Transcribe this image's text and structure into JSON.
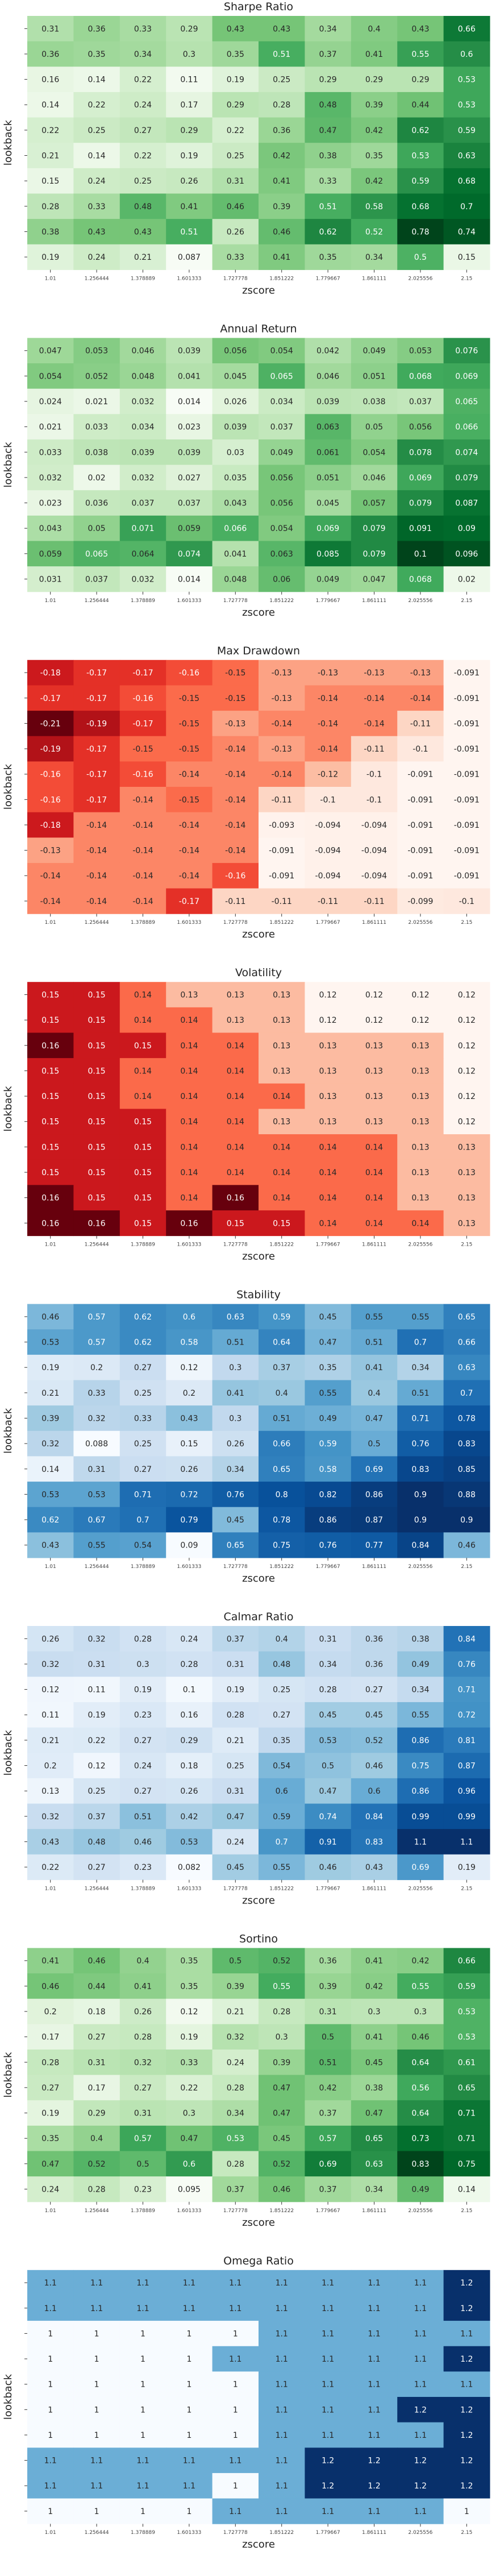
{
  "chart_data": [
    {
      "type": "heatmap",
      "title": "Sharpe Ratio",
      "xlabel": "zscore",
      "ylabel": "lookback",
      "x_ticks": [
        "1.01",
        "1.256444",
        "1.378889",
        "1.601333",
        "1.727778",
        "1.851222",
        "1.779667",
        "1.861111",
        "2.025556",
        "2.15"
      ],
      "y_ticks": [
        "",
        "",
        "",
        "",
        "",
        "",
        "",
        "",
        "",
        ""
      ],
      "colormap": "Greens",
      "values": [
        [
          0.31,
          0.36,
          0.33,
          0.29,
          0.43,
          0.43,
          0.34,
          0.4,
          0.43,
          0.66
        ],
        [
          0.36,
          0.35,
          0.34,
          0.3,
          0.35,
          0.51,
          0.37,
          0.41,
          0.55,
          0.6
        ],
        [
          0.16,
          0.14,
          0.22,
          0.11,
          0.19,
          0.25,
          0.29,
          0.29,
          0.29,
          0.53
        ],
        [
          0.14,
          0.22,
          0.24,
          0.17,
          0.29,
          0.28,
          0.48,
          0.39,
          0.44,
          0.53
        ],
        [
          0.22,
          0.25,
          0.27,
          0.29,
          0.22,
          0.36,
          0.47,
          0.42,
          0.62,
          0.59
        ],
        [
          0.21,
          0.14,
          0.22,
          0.19,
          0.25,
          0.42,
          0.38,
          0.35,
          0.53,
          0.63
        ],
        [
          0.15,
          0.24,
          0.25,
          0.26,
          0.31,
          0.41,
          0.33,
          0.42,
          0.59,
          0.68
        ],
        [
          0.28,
          0.33,
          0.48,
          0.41,
          0.46,
          0.39,
          0.51,
          0.58,
          0.68,
          0.7
        ],
        [
          0.38,
          0.43,
          0.43,
          0.51,
          0.26,
          0.46,
          0.62,
          0.52,
          0.78,
          0.74
        ],
        [
          0.19,
          0.24,
          0.21,
          0.087,
          0.33,
          0.41,
          0.35,
          0.34,
          0.5,
          0.15
        ]
      ]
    },
    {
      "type": "heatmap",
      "title": "Annual Return",
      "xlabel": "zscore",
      "ylabel": "lookback",
      "x_ticks": [
        "1.01",
        "1.256444",
        "1.378889",
        "1.601333",
        "1.727778",
        "1.851222",
        "1.779667",
        "1.861111",
        "2.025556",
        "2.15"
      ],
      "y_ticks": [
        "",
        "",
        "",
        "",
        "",
        "",
        "",
        "",
        "",
        ""
      ],
      "colormap": "Greens",
      "values": [
        [
          0.047,
          0.053,
          0.046,
          0.039,
          0.056,
          0.054,
          0.042,
          0.049,
          0.053,
          0.076
        ],
        [
          0.054,
          0.052,
          0.048,
          0.041,
          0.045,
          0.065,
          0.046,
          0.051,
          0.068,
          0.069
        ],
        [
          0.024,
          0.021,
          0.032,
          0.014,
          0.026,
          0.034,
          0.039,
          0.038,
          0.037,
          0.065
        ],
        [
          0.021,
          0.033,
          0.034,
          0.023,
          0.039,
          0.037,
          0.063,
          0.05,
          0.056,
          0.066
        ],
        [
          0.033,
          0.038,
          0.039,
          0.039,
          0.03,
          0.049,
          0.061,
          0.054,
          0.078,
          0.074
        ],
        [
          0.032,
          0.02,
          0.032,
          0.027,
          0.035,
          0.056,
          0.051,
          0.046,
          0.069,
          0.079
        ],
        [
          0.023,
          0.036,
          0.037,
          0.037,
          0.043,
          0.056,
          0.045,
          0.057,
          0.079,
          0.087
        ],
        [
          0.043,
          0.05,
          0.071,
          0.059,
          0.066,
          0.054,
          0.069,
          0.079,
          0.091,
          0.09
        ],
        [
          0.059,
          0.065,
          0.064,
          0.074,
          0.041,
          0.063,
          0.085,
          0.079,
          0.1,
          0.096
        ],
        [
          0.031,
          0.037,
          0.032,
          0.014,
          0.048,
          0.06,
          0.049,
          0.047,
          0.068,
          0.02
        ]
      ]
    },
    {
      "type": "heatmap",
      "title": "Max Drawdown",
      "xlabel": "zscore",
      "ylabel": "lookback",
      "x_ticks": [
        "1.01",
        "1.256444",
        "1.378889",
        "1.601333",
        "1.727778",
        "1.851222",
        "1.779667",
        "1.861111",
        "2.025556",
        "2.15"
      ],
      "y_ticks": [
        "",
        "",
        "",
        "",
        "",
        "",
        "",
        "",
        "",
        ""
      ],
      "colormap": "Reds_r",
      "values": [
        [
          -0.18,
          -0.17,
          -0.17,
          -0.16,
          -0.15,
          -0.13,
          -0.13,
          -0.13,
          -0.13,
          -0.091
        ],
        [
          -0.17,
          -0.17,
          -0.16,
          -0.15,
          -0.15,
          -0.13,
          -0.14,
          -0.14,
          -0.14,
          -0.091
        ],
        [
          -0.21,
          -0.19,
          -0.17,
          -0.15,
          -0.13,
          -0.14,
          -0.14,
          -0.14,
          -0.11,
          -0.091
        ],
        [
          -0.19,
          -0.17,
          -0.15,
          -0.15,
          -0.14,
          -0.13,
          -0.14,
          -0.11,
          -0.1,
          -0.091
        ],
        [
          -0.16,
          -0.17,
          -0.16,
          -0.14,
          -0.14,
          -0.14,
          -0.12,
          -0.1,
          -0.091,
          -0.091
        ],
        [
          -0.16,
          -0.17,
          -0.14,
          -0.15,
          -0.14,
          -0.11,
          -0.1,
          -0.1,
          -0.091,
          -0.091
        ],
        [
          -0.18,
          -0.14,
          -0.14,
          -0.14,
          -0.14,
          -0.093,
          -0.094,
          -0.094,
          -0.091,
          -0.091
        ],
        [
          -0.13,
          -0.14,
          -0.14,
          -0.14,
          -0.14,
          -0.091,
          -0.094,
          -0.094,
          -0.091,
          -0.091
        ],
        [
          -0.14,
          -0.14,
          -0.14,
          -0.14,
          -0.16,
          -0.091,
          -0.094,
          -0.094,
          -0.091,
          -0.091
        ],
        [
          -0.14,
          -0.14,
          -0.14,
          -0.17,
          -0.11,
          -0.11,
          -0.11,
          -0.11,
          -0.099,
          -0.1
        ]
      ]
    },
    {
      "type": "heatmap",
      "title": "Volatility",
      "xlabel": "zscore",
      "ylabel": "lookback",
      "x_ticks": [
        "1.01",
        "1.256444",
        "1.378889",
        "1.601333",
        "1.727778",
        "1.851222",
        "1.779667",
        "1.861111",
        "2.025556",
        "2.15"
      ],
      "y_ticks": [
        "",
        "",
        "",
        "",
        "",
        "",
        "",
        "",
        "",
        ""
      ],
      "colormap": "Reds",
      "values": [
        [
          0.15,
          0.15,
          0.14,
          0.13,
          0.13,
          0.13,
          0.12,
          0.12,
          0.12,
          0.12
        ],
        [
          0.15,
          0.15,
          0.14,
          0.14,
          0.13,
          0.13,
          0.12,
          0.12,
          0.12,
          0.12
        ],
        [
          0.16,
          0.15,
          0.15,
          0.14,
          0.14,
          0.13,
          0.13,
          0.13,
          0.13,
          0.12
        ],
        [
          0.15,
          0.15,
          0.14,
          0.14,
          0.14,
          0.13,
          0.13,
          0.13,
          0.13,
          0.12
        ],
        [
          0.15,
          0.15,
          0.14,
          0.14,
          0.14,
          0.14,
          0.13,
          0.13,
          0.13,
          0.12
        ],
        [
          0.15,
          0.15,
          0.15,
          0.14,
          0.14,
          0.13,
          0.13,
          0.13,
          0.13,
          0.12
        ],
        [
          0.15,
          0.15,
          0.15,
          0.14,
          0.14,
          0.14,
          0.14,
          0.14,
          0.13,
          0.13
        ],
        [
          0.15,
          0.15,
          0.15,
          0.14,
          0.14,
          0.14,
          0.14,
          0.14,
          0.13,
          0.13
        ],
        [
          0.16,
          0.15,
          0.15,
          0.14,
          0.16,
          0.14,
          0.14,
          0.14,
          0.13,
          0.13
        ],
        [
          0.16,
          0.16,
          0.15,
          0.16,
          0.15,
          0.15,
          0.14,
          0.14,
          0.14,
          0.13
        ]
      ]
    },
    {
      "type": "heatmap",
      "title": "Stability",
      "xlabel": "zscore",
      "ylabel": "lookback",
      "x_ticks": [
        "1.01",
        "1.256444",
        "1.378889",
        "1.601333",
        "1.727778",
        "1.851222",
        "1.779667",
        "1.861111",
        "2.025556",
        "2.15"
      ],
      "y_ticks": [
        "",
        "",
        "",
        "",
        "",
        "",
        "",
        "",
        "",
        ""
      ],
      "colormap": "Blues",
      "values": [
        [
          0.46,
          0.57,
          0.62,
          0.6,
          0.63,
          0.59,
          0.45,
          0.55,
          0.55,
          0.65
        ],
        [
          0.53,
          0.57,
          0.62,
          0.58,
          0.51,
          0.64,
          0.47,
          0.51,
          0.7,
          0.66
        ],
        [
          0.19,
          0.2,
          0.27,
          0.12,
          0.3,
          0.37,
          0.35,
          0.41,
          0.34,
          0.63
        ],
        [
          0.21,
          0.33,
          0.25,
          0.2,
          0.41,
          0.4,
          0.55,
          0.4,
          0.51,
          0.7
        ],
        [
          0.39,
          0.32,
          0.33,
          0.43,
          0.3,
          0.51,
          0.49,
          0.47,
          0.71,
          0.78
        ],
        [
          0.32,
          0.088,
          0.25,
          0.15,
          0.26,
          0.66,
          0.59,
          0.5,
          0.76,
          0.83
        ],
        [
          0.14,
          0.31,
          0.27,
          0.26,
          0.34,
          0.65,
          0.58,
          0.69,
          0.83,
          0.85
        ],
        [
          0.53,
          0.53,
          0.71,
          0.72,
          0.76,
          0.8,
          0.82,
          0.86,
          0.9,
          0.88
        ],
        [
          0.62,
          0.67,
          0.7,
          0.79,
          0.45,
          0.78,
          0.86,
          0.87,
          0.9,
          0.9
        ],
        [
          0.43,
          0.55,
          0.54,
          0.09,
          0.65,
          0.75,
          0.76,
          0.77,
          0.84,
          0.46
        ]
      ]
    },
    {
      "type": "heatmap",
      "title": "Calmar Ratio",
      "xlabel": "zscore",
      "ylabel": "lookback",
      "x_ticks": [
        "1.01",
        "1.256444",
        "1.378889",
        "1.601333",
        "1.727778",
        "1.851222",
        "1.779667",
        "1.861111",
        "2.025556",
        "2.15"
      ],
      "y_ticks": [
        "",
        "",
        "",
        "",
        "",
        "",
        "",
        "",
        "",
        ""
      ],
      "colormap": "Blues",
      "values": [
        [
          0.26,
          0.32,
          0.28,
          0.24,
          0.37,
          0.4,
          0.31,
          0.36,
          0.38,
          0.84
        ],
        [
          0.32,
          0.31,
          0.3,
          0.28,
          0.31,
          0.48,
          0.34,
          0.36,
          0.49,
          0.76
        ],
        [
          0.12,
          0.11,
          0.19,
          0.1,
          0.19,
          0.25,
          0.28,
          0.27,
          0.34,
          0.71
        ],
        [
          0.11,
          0.19,
          0.23,
          0.16,
          0.28,
          0.27,
          0.45,
          0.45,
          0.55,
          0.72
        ],
        [
          0.21,
          0.22,
          0.27,
          0.29,
          0.21,
          0.35,
          0.53,
          0.52,
          0.86,
          0.81
        ],
        [
          0.2,
          0.12,
          0.24,
          0.18,
          0.25,
          0.54,
          0.5,
          0.46,
          0.75,
          0.87
        ],
        [
          0.13,
          0.25,
          0.27,
          0.26,
          0.31,
          0.6,
          0.47,
          0.6,
          0.86,
          0.96
        ],
        [
          0.32,
          0.37,
          0.51,
          0.42,
          0.47,
          0.59,
          0.74,
          0.84,
          0.99,
          0.99
        ],
        [
          0.43,
          0.48,
          0.46,
          0.53,
          0.24,
          0.7,
          0.91,
          0.83,
          1.1,
          1.1
        ],
        [
          0.22,
          0.27,
          0.23,
          0.082,
          0.45,
          0.55,
          0.46,
          0.43,
          0.69,
          0.19
        ]
      ]
    },
    {
      "type": "heatmap",
      "title": "Sortino",
      "xlabel": "zscore",
      "ylabel": "lookback",
      "x_ticks": [
        "1.01",
        "1.256444",
        "1.378889",
        "1.601333",
        "1.727778",
        "1.851222",
        "1.779667",
        "1.861111",
        "2.025556",
        "2.15"
      ],
      "y_ticks": [
        "",
        "",
        "",
        "",
        "",
        "",
        "",
        "",
        "",
        ""
      ],
      "colormap": "Greens",
      "values": [
        [
          0.41,
          0.46,
          0.4,
          0.35,
          0.5,
          0.52,
          0.36,
          0.41,
          0.42,
          0.66
        ],
        [
          0.46,
          0.44,
          0.41,
          0.35,
          0.39,
          0.55,
          0.39,
          0.42,
          0.55,
          0.59
        ],
        [
          0.2,
          0.18,
          0.26,
          0.12,
          0.21,
          0.28,
          0.31,
          0.3,
          0.3,
          0.53
        ],
        [
          0.17,
          0.27,
          0.28,
          0.19,
          0.32,
          0.3,
          0.5,
          0.41,
          0.46,
          0.53
        ],
        [
          0.28,
          0.31,
          0.32,
          0.33,
          0.24,
          0.39,
          0.51,
          0.45,
          0.64,
          0.61
        ],
        [
          0.27,
          0.17,
          0.27,
          0.22,
          0.28,
          0.47,
          0.42,
          0.38,
          0.56,
          0.65
        ],
        [
          0.19,
          0.29,
          0.31,
          0.3,
          0.34,
          0.47,
          0.37,
          0.47,
          0.64,
          0.71
        ],
        [
          0.35,
          0.4,
          0.57,
          0.47,
          0.53,
          0.45,
          0.57,
          0.65,
          0.73,
          0.71
        ],
        [
          0.47,
          0.52,
          0.5,
          0.6,
          0.28,
          0.52,
          0.69,
          0.63,
          0.83,
          0.75
        ],
        [
          0.24,
          0.28,
          0.23,
          0.095,
          0.37,
          0.46,
          0.37,
          0.34,
          0.49,
          0.14
        ]
      ]
    },
    {
      "type": "heatmap",
      "title": "Omega Ratio",
      "xlabel": "zscore",
      "ylabel": "lookback",
      "x_ticks": [
        "1.01",
        "1.256444",
        "1.378889",
        "1.601333",
        "1.727778",
        "1.851222",
        "1.779667",
        "1.861111",
        "2.025556",
        "2.15"
      ],
      "y_ticks": [
        "",
        "",
        "",
        "",
        "",
        "",
        "",
        "",
        "",
        ""
      ],
      "colormap": "Blues",
      "values": [
        [
          1.1,
          1.1,
          1.1,
          1.1,
          1.1,
          1.1,
          1.1,
          1.1,
          1.1,
          1.2
        ],
        [
          1.1,
          1.1,
          1.1,
          1.1,
          1.1,
          1.1,
          1.1,
          1.1,
          1.1,
          1.2
        ],
        [
          1,
          1,
          1,
          1,
          1,
          1.1,
          1.1,
          1.1,
          1.1,
          1.1
        ],
        [
          1,
          1,
          1,
          1,
          1.1,
          1.1,
          1.1,
          1.1,
          1.1,
          1.2
        ],
        [
          1,
          1,
          1,
          1,
          1,
          1.1,
          1.1,
          1.1,
          1.1,
          1.1
        ],
        [
          1,
          1,
          1,
          1,
          1,
          1.1,
          1.1,
          1.1,
          1.2,
          1.2
        ],
        [
          1,
          1,
          1,
          1,
          1,
          1.1,
          1.1,
          1.1,
          1.1,
          1.2
        ],
        [
          1.1,
          1.1,
          1.1,
          1.1,
          1.1,
          1.1,
          1.2,
          1.2,
          1.2,
          1.2
        ],
        [
          1.1,
          1.1,
          1.1,
          1.1,
          1,
          1.1,
          1.2,
          1.2,
          1.2,
          1.2
        ],
        [
          1,
          1,
          1,
          1,
          1.1,
          1.1,
          1.1,
          1.1,
          1.1,
          1
        ]
      ]
    }
  ]
}
